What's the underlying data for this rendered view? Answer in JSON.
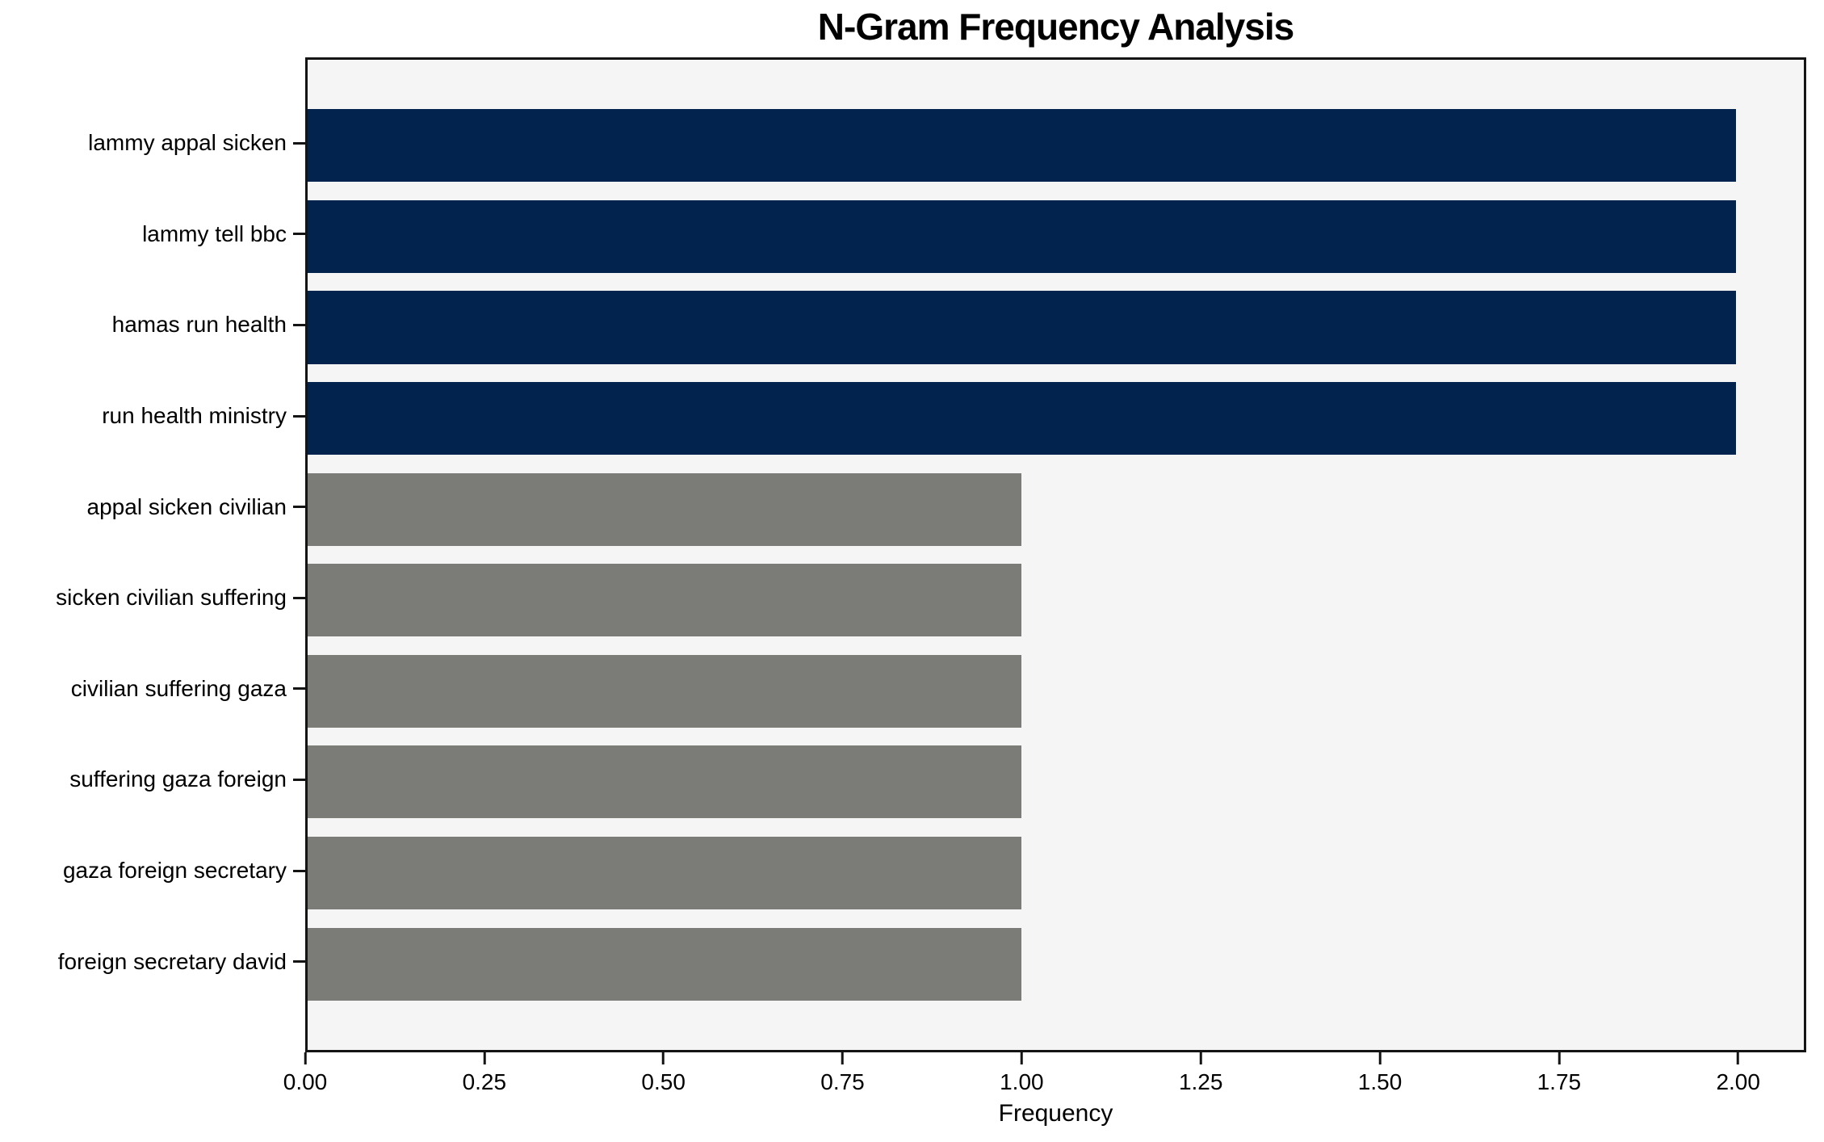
{
  "chart_data": {
    "type": "bar",
    "orientation": "horizontal",
    "title": "N-Gram Frequency Analysis",
    "xlabel": "Frequency",
    "ylabel": "",
    "categories": [
      "lammy appal sicken",
      "lammy tell bbc",
      "hamas run health",
      "run health ministry",
      "appal sicken civilian",
      "sicken civilian suffering",
      "civilian suffering gaza",
      "suffering gaza foreign",
      "gaza foreign secretary",
      "foreign secretary david"
    ],
    "values": [
      2,
      2,
      2,
      2,
      1,
      1,
      1,
      1,
      1,
      1
    ],
    "bar_colors": [
      "#02234d",
      "#02234d",
      "#02234d",
      "#02234d",
      "#7b7b78",
      "#7b7b78",
      "#7b7b78",
      "#7b7b78",
      "#7b7b78",
      "#7b7b78"
    ],
    "xticks": [
      "0.00",
      "0.25",
      "0.50",
      "0.75",
      "1.00",
      "1.25",
      "1.50",
      "1.75",
      "2.00"
    ],
    "xtick_values": [
      0,
      0.25,
      0.5,
      0.75,
      1.0,
      1.25,
      1.5,
      1.75,
      2.0
    ],
    "xlim": [
      0,
      2.095
    ],
    "grid": false,
    "legend_position": "none",
    "plot_background": "#f5f5f5",
    "figure_background": "#ffffff"
  }
}
